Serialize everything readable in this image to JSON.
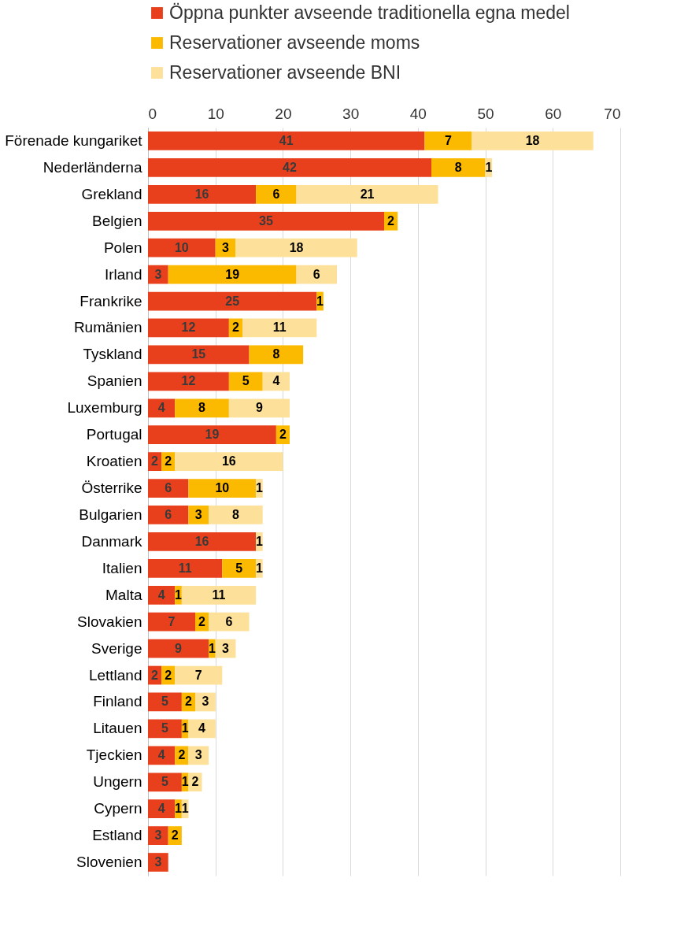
{
  "chart_data": {
    "type": "bar",
    "orientation": "horizontal",
    "stacked": true,
    "data_labels": true,
    "grid": "x",
    "legend": "top",
    "categories": [
      "Förenade kungariket",
      "Nederländerna",
      "Grekland",
      "Belgien",
      "Polen",
      "Irland",
      "Frankrike",
      "Rumänien",
      "Tyskland",
      "Spanien",
      "Luxemburg",
      "Portugal",
      "Kroatien",
      "Österrike",
      "Bulgarien",
      "Danmark",
      "Italien",
      "Malta",
      "Slovakien",
      "Sverige",
      "Lettland",
      "Finland",
      "Litauen",
      "Tjeckien",
      "Ungern",
      "Cypern",
      "Estland",
      "Slovenien"
    ],
    "series": [
      {
        "name": "Öppna punkter avseende traditionella egna medel",
        "color": "#e8401c",
        "values": [
          41,
          42,
          16,
          35,
          10,
          3,
          25,
          12,
          15,
          12,
          4,
          19,
          2,
          6,
          6,
          16,
          11,
          4,
          7,
          9,
          2,
          5,
          5,
          4,
          5,
          4,
          3,
          3
        ]
      },
      {
        "name": "Reservationer avseende moms",
        "color": "#fbb900",
        "values": [
          7,
          8,
          6,
          2,
          3,
          19,
          1,
          2,
          8,
          5,
          8,
          2,
          2,
          10,
          3,
          null,
          5,
          1,
          2,
          1,
          2,
          2,
          1,
          2,
          1,
          1,
          2,
          null
        ]
      },
      {
        "name": "Reservationer avseende BNI",
        "color": "#fde19a",
        "values": [
          18,
          1,
          21,
          null,
          18,
          6,
          null,
          11,
          null,
          4,
          9,
          null,
          16,
          1,
          8,
          1,
          1,
          11,
          6,
          3,
          7,
          3,
          4,
          3,
          2,
          1,
          null,
          null
        ]
      }
    ],
    "xlim": [
      0,
      70
    ],
    "xticks": [
      0,
      10,
      20,
      30,
      40,
      50,
      60,
      70
    ]
  }
}
